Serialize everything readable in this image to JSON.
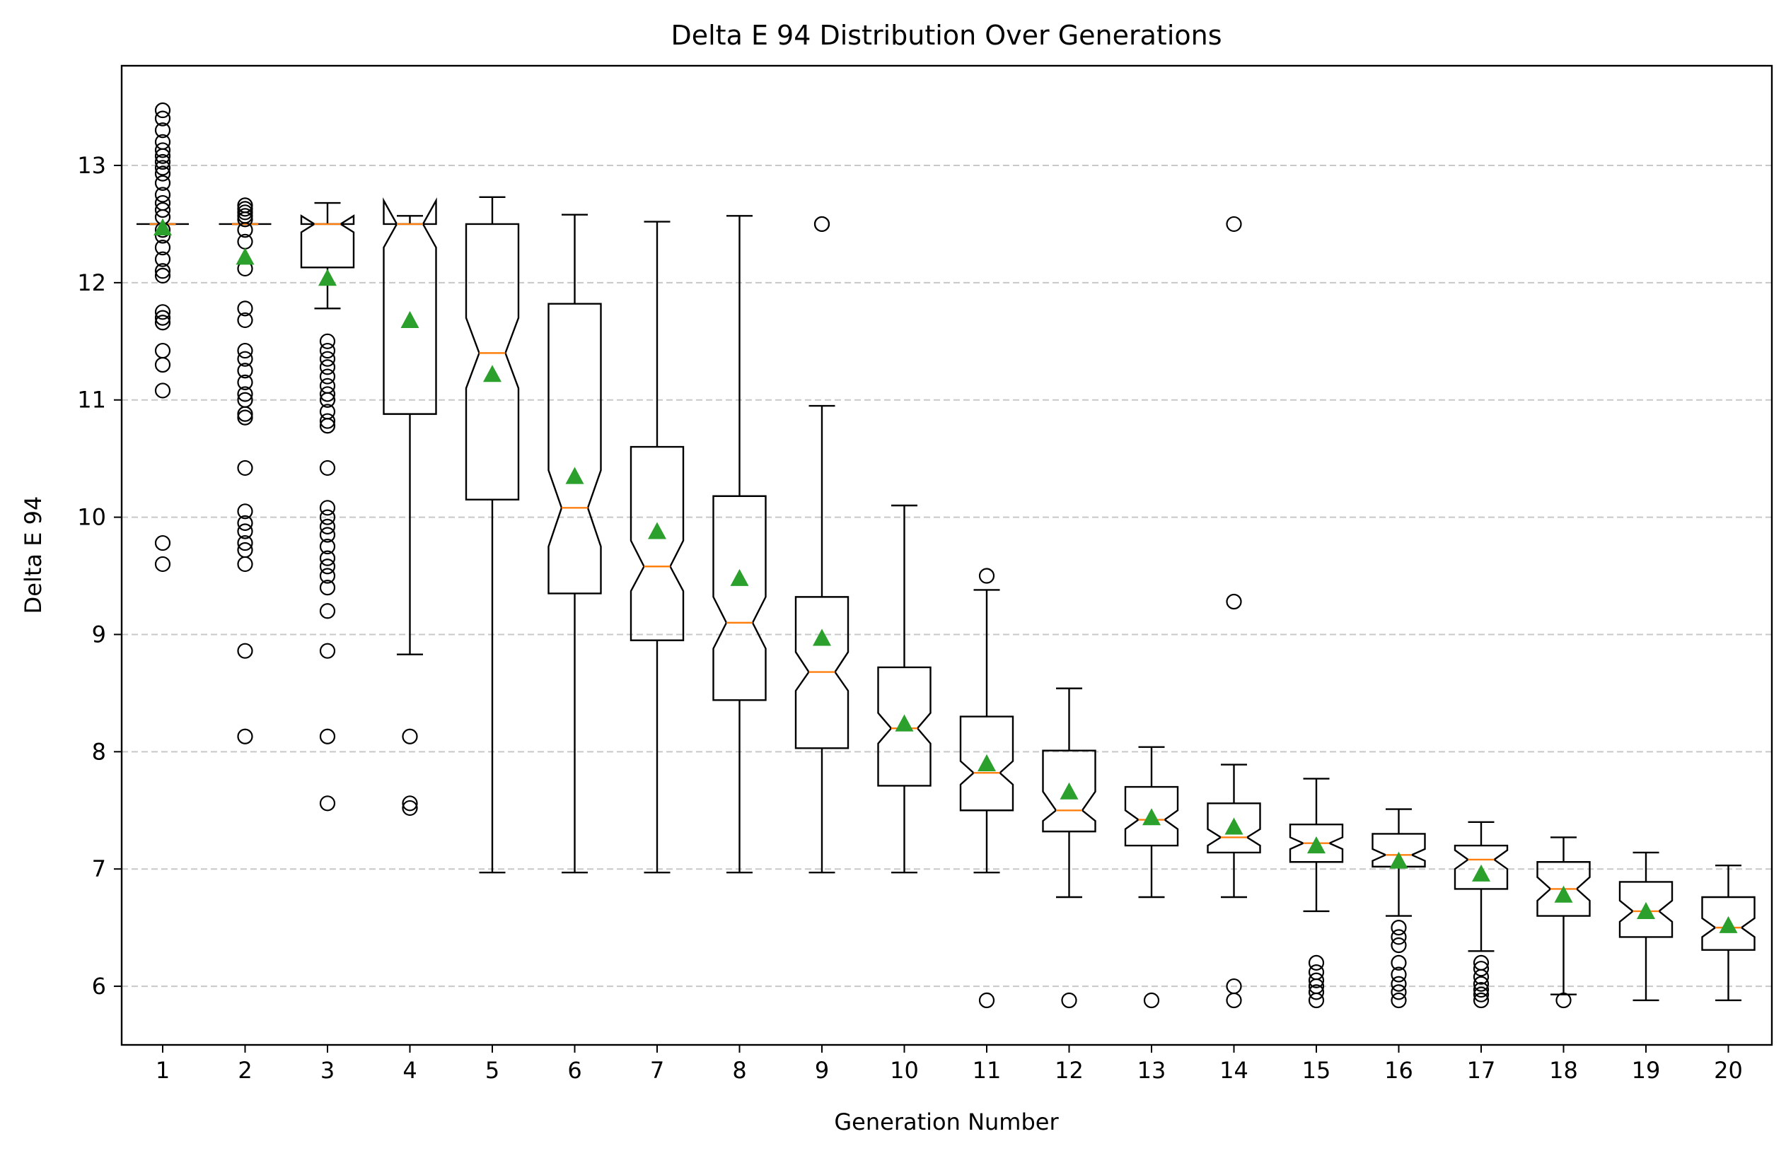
{
  "chart_data": {
    "type": "boxplot",
    "title": "Delta E 94 Distribution Over Generations",
    "xlabel": "Generation Number",
    "ylabel": "Delta E 94",
    "ylim": [
      5.5,
      13.85
    ],
    "yticks": [
      6,
      7,
      8,
      9,
      10,
      11,
      12,
      13
    ],
    "grid": "y-dashed",
    "notched": true,
    "colors": {
      "box": "#000000",
      "median": "#ff7f0e",
      "mean_marker": "#2ca02c",
      "grid": "#c8c8c8"
    },
    "categories": [
      "1",
      "2",
      "3",
      "4",
      "5",
      "6",
      "7",
      "8",
      "9",
      "10",
      "11",
      "12",
      "13",
      "14",
      "15",
      "16",
      "17",
      "18",
      "19",
      "20"
    ],
    "boxes": [
      {
        "whislo": 12.5,
        "q1": 12.5,
        "med": 12.5,
        "q3": 12.5,
        "whishi": 12.5,
        "notch_lo": 12.5,
        "notch_hi": 12.5,
        "mean": 12.47,
        "fliers": [
          13.47,
          13.4,
          13.3,
          13.2,
          13.13,
          13.08,
          13.03,
          12.98,
          12.93,
          12.85,
          12.75,
          12.68,
          12.62,
          12.56,
          12.45,
          12.4,
          12.3,
          12.2,
          12.1,
          12.06,
          11.75,
          11.7,
          11.66,
          11.42,
          11.3,
          11.08,
          9.78,
          9.6
        ]
      },
      {
        "whislo": 12.5,
        "q1": 12.5,
        "med": 12.5,
        "q3": 12.5,
        "whishi": 12.5,
        "notch_lo": 12.5,
        "notch_hi": 12.5,
        "mean": 12.22,
        "fliers": [
          12.66,
          12.63,
          12.6,
          12.57,
          12.54,
          12.45,
          12.35,
          12.12,
          11.78,
          11.68,
          11.42,
          11.35,
          11.25,
          11.15,
          11.05,
          11.0,
          10.88,
          10.85,
          10.42,
          10.05,
          9.95,
          9.88,
          9.78,
          9.72,
          9.6,
          8.86,
          8.13
        ]
      },
      {
        "whislo": 11.78,
        "q1": 12.13,
        "med": 12.5,
        "q3": 12.5,
        "whishi": 12.68,
        "notch_lo": 12.43,
        "notch_hi": 12.57,
        "mean": 12.04,
        "fliers": [
          11.5,
          11.42,
          11.35,
          11.28,
          11.2,
          11.12,
          11.05,
          11.0,
          10.9,
          10.82,
          10.78,
          10.42,
          10.08,
          10.0,
          9.92,
          9.85,
          9.75,
          9.65,
          9.58,
          9.5,
          9.4,
          9.2,
          8.86,
          8.13,
          7.56
        ]
      },
      {
        "whislo": 8.83,
        "q1": 10.88,
        "med": 12.5,
        "q3": 12.5,
        "whishi": 12.57,
        "notch_lo": 12.3,
        "notch_hi": 12.7,
        "mean": 11.68,
        "fliers": [
          8.13,
          7.56,
          7.52
        ]
      },
      {
        "whislo": 6.97,
        "q1": 10.15,
        "med": 11.4,
        "q3": 12.5,
        "whishi": 12.73,
        "notch_lo": 11.1,
        "notch_hi": 11.7,
        "mean": 11.22,
        "fliers": []
      },
      {
        "whislo": 6.97,
        "q1": 9.35,
        "med": 10.08,
        "q3": 11.82,
        "whishi": 12.58,
        "notch_lo": 9.75,
        "notch_hi": 10.4,
        "mean": 10.35,
        "fliers": []
      },
      {
        "whislo": 6.97,
        "q1": 8.95,
        "med": 9.58,
        "q3": 10.6,
        "whishi": 12.52,
        "notch_lo": 9.37,
        "notch_hi": 9.8,
        "mean": 9.88,
        "fliers": []
      },
      {
        "whislo": 6.97,
        "q1": 8.44,
        "med": 9.1,
        "q3": 10.18,
        "whishi": 12.57,
        "notch_lo": 8.88,
        "notch_hi": 9.32,
        "mean": 9.48,
        "fliers": []
      },
      {
        "whislo": 6.97,
        "q1": 8.03,
        "med": 8.68,
        "q3": 9.32,
        "whishi": 10.95,
        "notch_lo": 8.52,
        "notch_hi": 8.85,
        "mean": 8.97,
        "fliers": [
          12.5,
          12.5
        ]
      },
      {
        "whislo": 6.97,
        "q1": 7.71,
        "med": 8.2,
        "q3": 8.72,
        "whishi": 10.1,
        "notch_lo": 8.07,
        "notch_hi": 8.33,
        "mean": 8.24,
        "fliers": []
      },
      {
        "whislo": 6.97,
        "q1": 7.5,
        "med": 7.82,
        "q3": 8.3,
        "whishi": 9.38,
        "notch_lo": 7.72,
        "notch_hi": 7.92,
        "mean": 7.9,
        "fliers": [
          9.5,
          5.88
        ]
      },
      {
        "whislo": 6.76,
        "q1": 7.32,
        "med": 7.5,
        "q3": 8.01,
        "whishi": 8.54,
        "notch_lo": 7.41,
        "notch_hi": 7.66,
        "mean": 7.66,
        "fliers": [
          5.88
        ]
      },
      {
        "whislo": 6.76,
        "q1": 7.2,
        "med": 7.42,
        "q3": 7.7,
        "whishi": 8.04,
        "notch_lo": 7.34,
        "notch_hi": 7.5,
        "mean": 7.44,
        "fliers": [
          5.88
        ]
      },
      {
        "whislo": 6.76,
        "q1": 7.14,
        "med": 7.27,
        "q3": 7.56,
        "whishi": 7.89,
        "notch_lo": 7.2,
        "notch_hi": 7.34,
        "mean": 7.36,
        "fliers": [
          12.5,
          9.28,
          6.0,
          5.88
        ]
      },
      {
        "whislo": 6.64,
        "q1": 7.06,
        "med": 7.22,
        "q3": 7.38,
        "whishi": 7.77,
        "notch_lo": 7.17,
        "notch_hi": 7.27,
        "mean": 7.2,
        "fliers": [
          6.2,
          6.12,
          6.05,
          6.0,
          5.95,
          5.88
        ]
      },
      {
        "whislo": 6.6,
        "q1": 7.02,
        "med": 7.12,
        "q3": 7.3,
        "whishi": 7.51,
        "notch_lo": 7.07,
        "notch_hi": 7.17,
        "mean": 7.07,
        "fliers": [
          6.5,
          6.42,
          6.35,
          6.2,
          6.1,
          6.02,
          5.95,
          5.88
        ]
      },
      {
        "whislo": 6.3,
        "q1": 6.83,
        "med": 7.08,
        "q3": 7.2,
        "whishi": 7.4,
        "notch_lo": 7.0,
        "notch_hi": 7.16,
        "mean": 6.96,
        "fliers": [
          6.2,
          6.15,
          6.08,
          6.02,
          5.97,
          5.93,
          5.88
        ]
      },
      {
        "whislo": 5.93,
        "q1": 6.6,
        "med": 6.83,
        "q3": 7.06,
        "whishi": 7.27,
        "notch_lo": 6.73,
        "notch_hi": 6.93,
        "mean": 6.78,
        "fliers": [
          5.88
        ]
      },
      {
        "whislo": 5.88,
        "q1": 6.42,
        "med": 6.64,
        "q3": 6.89,
        "whishi": 7.14,
        "notch_lo": 6.55,
        "notch_hi": 6.73,
        "mean": 6.64,
        "fliers": []
      },
      {
        "whislo": 5.88,
        "q1": 6.31,
        "med": 6.5,
        "q3": 6.76,
        "whishi": 7.03,
        "notch_lo": 6.42,
        "notch_hi": 6.58,
        "mean": 6.52,
        "fliers": []
      }
    ]
  }
}
